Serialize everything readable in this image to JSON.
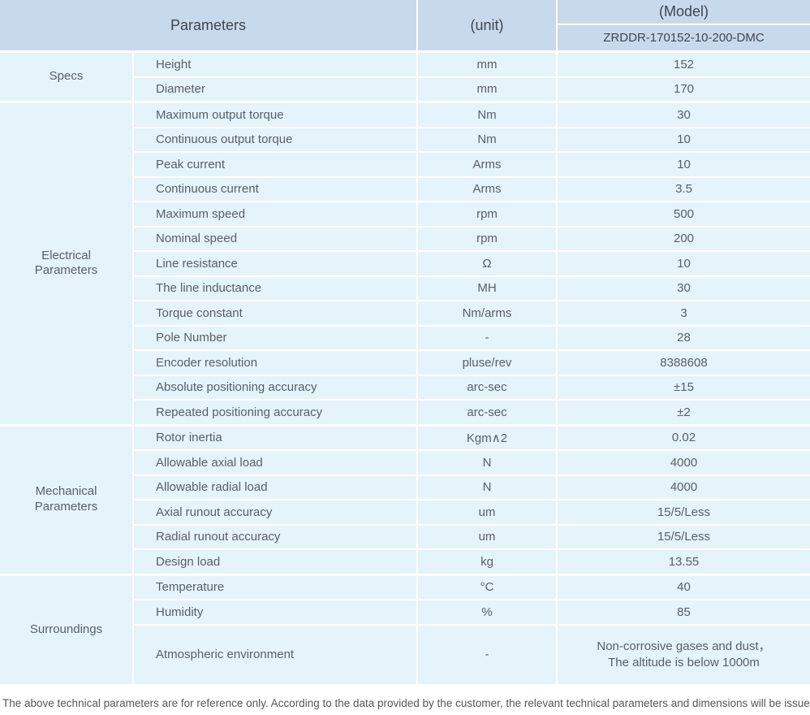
{
  "table": {
    "header": {
      "parameters_label": "Parameters",
      "unit_label": "(unit)",
      "model_label": "(Model)",
      "model_number": "ZRDDR-170152-10-200-DMC"
    },
    "sections": [
      {
        "group": "Specs",
        "rows": [
          {
            "param": "Height",
            "unit": "mm",
            "value": "152"
          },
          {
            "param": "Diameter",
            "unit": "mm",
            "value": "170"
          }
        ]
      },
      {
        "group": "Electrical\nParameters",
        "rows": [
          {
            "param": "Maximum output torque",
            "unit": "Nm",
            "value": "30"
          },
          {
            "param": "Continuous output torque",
            "unit": "Nm",
            "value": "10"
          },
          {
            "param": "Peak current",
            "unit": "Arms",
            "value": "10"
          },
          {
            "param": "Continuous current",
            "unit": "Arms",
            "value": "3.5"
          },
          {
            "param": "Maximum speed",
            "unit": "rpm",
            "value": "500"
          },
          {
            "param": "Nominal speed",
            "unit": "rpm",
            "value": "200"
          },
          {
            "param": "Line resistance",
            "unit": "Ω",
            "value": "10"
          },
          {
            "param": "The line inductance",
            "unit": "MH",
            "value": "30"
          },
          {
            "param": "Torque constant",
            "unit": "Nm/arms",
            "value": "3"
          },
          {
            "param": "Pole Number",
            "unit": "-",
            "value": "28"
          },
          {
            "param": "Encoder resolution",
            "unit": "pluse/rev",
            "value": "8388608"
          },
          {
            "param": "Absolute positioning accuracy",
            "unit": "arc-sec",
            "value": "±15"
          },
          {
            "param": "Repeated positioning accuracy",
            "unit": "arc-sec",
            "value": "±2"
          }
        ]
      },
      {
        "group": "Mechanical\nParameters",
        "rows": [
          {
            "param": "Rotor inertia",
            "unit": "Kgm∧2",
            "value": "0.02"
          },
          {
            "param": "Allowable axial load",
            "unit": "N",
            "value": "4000"
          },
          {
            "param": "Allowable radial load",
            "unit": "N",
            "value": "4000"
          },
          {
            "param": "Axial runout accuracy",
            "unit": "um",
            "value": "15/5/Less"
          },
          {
            "param": "Radial runout accuracy",
            "unit": "um",
            "value": "15/5/Less"
          },
          {
            "param": "Design load",
            "unit": "kg",
            "value": "13.55"
          }
        ]
      },
      {
        "group": "Surroundings",
        "rows": [
          {
            "param": "Temperature",
            "unit": "°C",
            "value": "40"
          },
          {
            "param": "Humidity",
            "unit": "%",
            "value": "85"
          },
          {
            "param": "Atmospheric environment",
            "unit": "-",
            "value": "Non-corrosive gases and dust，\nThe altitude is below 1000m"
          }
        ]
      }
    ]
  },
  "footer": {
    "note": "The above technical parameters are for reference only. According to the data provided by the customer, the relevant technical parameters and dimensions will be issued."
  },
  "colors": {
    "header_bg": "#c9d9ec",
    "cell_bg": "#e5f3fb",
    "separator": "#ffffff",
    "header_text": "#3e4650",
    "body_text": "#585f66"
  }
}
